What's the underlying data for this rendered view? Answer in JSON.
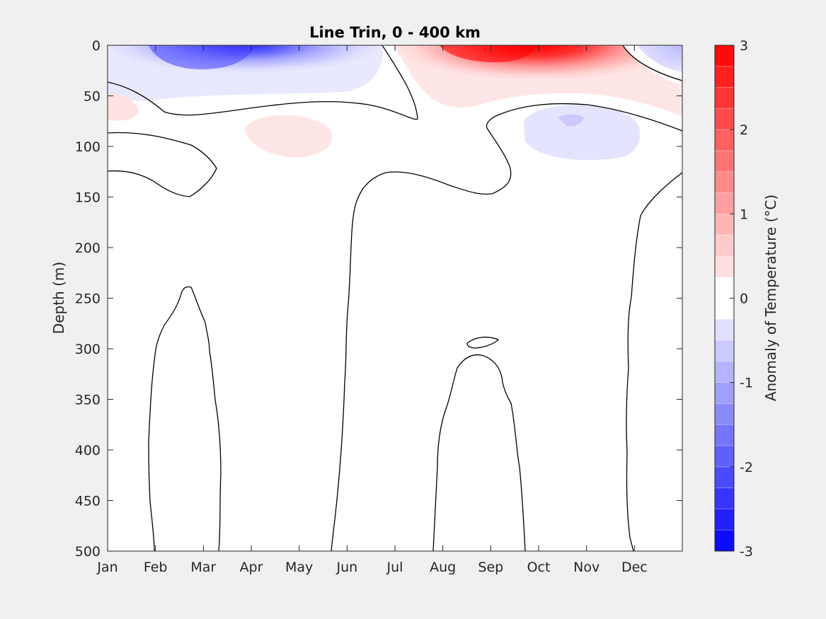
{
  "chart_data": {
    "type": "heatmap",
    "subtype": "filled contour",
    "title": "Line Trin, 0 - 400 km",
    "xlabel": "",
    "ylabel": "Depth (m)",
    "x_ticks": [
      "Jan",
      "Feb",
      "Mar",
      "Apr",
      "May",
      "Jun",
      "Jul",
      "Aug",
      "Sep",
      "Oct",
      "Nov",
      "Dec"
    ],
    "xlim": [
      "Jan",
      "Dec"
    ],
    "y_ticks": [
      "0",
      "50",
      "100",
      "150",
      "200",
      "250",
      "300",
      "350",
      "400",
      "450",
      "500"
    ],
    "ylim": [
      0,
      500
    ],
    "y_reversed": true,
    "colorbar": {
      "label": "Anomaly of Temperature (°C)",
      "ticks": [
        "3",
        "2",
        "1",
        "0",
        "-1",
        "-2",
        "-3"
      ],
      "range": [
        -3,
        3
      ],
      "levels": 24,
      "step": 0.25,
      "colormap": "blue-white-red",
      "low_color": "#0000ff",
      "high_color": "#ff0000",
      "zero_color": "#ffffff"
    },
    "features": [
      {
        "name": "cold anomaly",
        "months": [
          "Jan",
          "Apr"
        ],
        "depth": [
          0,
          60
        ],
        "min_value": -2.0
      },
      {
        "name": "warm anomaly",
        "months": [
          "Jul",
          "Nov"
        ],
        "depth": [
          0,
          60
        ],
        "max_value": 2.25
      },
      {
        "name": "weak warm anomaly",
        "months": [
          "Apr",
          "May"
        ],
        "depth": [
          70,
          110
        ],
        "max_value": 0.25
      },
      {
        "name": "weak cold anomaly",
        "months": [
          "Oct",
          "Dec"
        ],
        "depth": [
          60,
          115
        ],
        "min_value": -0.5
      },
      {
        "name": "weak warm anomaly",
        "months": [
          "Jan"
        ],
        "depth": [
          50,
          70
        ],
        "max_value": 0.25
      },
      {
        "name": "weak warm anomaly",
        "months": [
          "Dec"
        ],
        "depth": [
          30,
          70
        ],
        "max_value": 0.25
      }
    ],
    "grid": false,
    "legend": "colorbar right"
  }
}
